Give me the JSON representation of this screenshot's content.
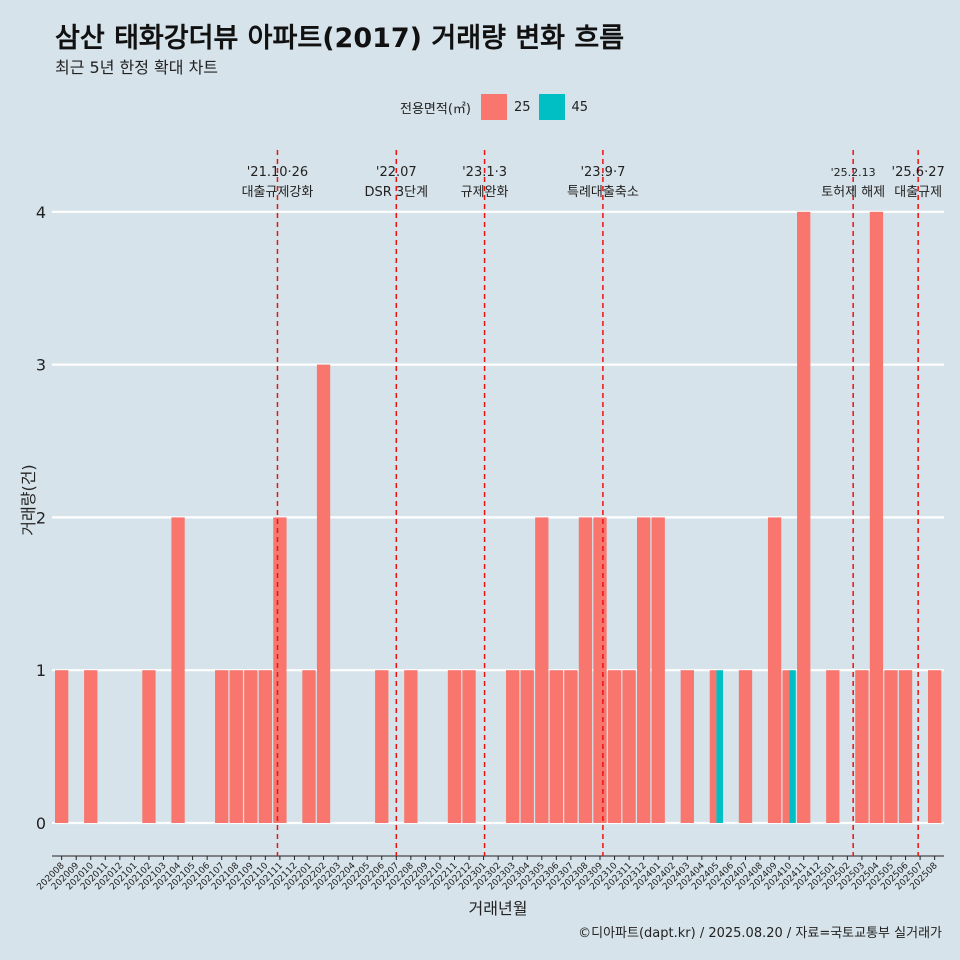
{
  "title": "삼산 태화강더뷰 아파트(2017) 거래량 변화 흐름",
  "subtitle": "최근 5년 한정 확대 차트",
  "caption": "©디아파트(dapt.kr) / 2025.08.20 / 자료=국토교통부 실거래가",
  "legend": {
    "title": "전용면적(㎡)",
    "items": [
      {
        "label": "25",
        "color": "#f8766d"
      },
      {
        "label": "45",
        "color": "#00bfc4"
      }
    ]
  },
  "chart_data": {
    "type": "bar",
    "xlabel": "거래년월",
    "ylabel": "거래량(건)",
    "ylim": [
      0,
      4
    ],
    "yticks": [
      0,
      1,
      2,
      3,
      4
    ],
    "categories": [
      "202008",
      "202009",
      "202010",
      "202011",
      "202012",
      "202101",
      "202102",
      "202103",
      "202104",
      "202105",
      "202106",
      "202107",
      "202108",
      "202109",
      "202110",
      "202111",
      "202112",
      "202201",
      "202202",
      "202203",
      "202204",
      "202205",
      "202206",
      "202207",
      "202208",
      "202209",
      "202210",
      "202211",
      "202212",
      "202301",
      "202302",
      "202303",
      "202304",
      "202305",
      "202306",
      "202307",
      "202308",
      "202309",
      "202310",
      "202311",
      "202312",
      "202401",
      "202402",
      "202403",
      "202404",
      "202405",
      "202406",
      "202407",
      "202408",
      "202409",
      "202410",
      "202411",
      "202412",
      "202501",
      "202502",
      "202503",
      "202504",
      "202505",
      "202506",
      "202507",
      "202508"
    ],
    "series": [
      {
        "name": "25",
        "color": "#f8766d",
        "values": [
          1,
          0,
          1,
          0,
          0,
          0,
          1,
          0,
          2,
          0,
          0,
          1,
          1,
          1,
          1,
          2,
          0,
          1,
          3,
          0,
          0,
          0,
          1,
          0,
          1,
          0,
          0,
          1,
          1,
          0,
          0,
          1,
          1,
          2,
          1,
          1,
          2,
          2,
          1,
          1,
          2,
          2,
          0,
          1,
          0,
          1,
          0,
          1,
          0,
          2,
          1,
          4,
          0,
          1,
          0,
          1,
          4,
          1,
          1,
          0,
          1
        ]
      },
      {
        "name": "45",
        "color": "#00bfc4",
        "values": [
          0,
          0,
          0,
          0,
          0,
          0,
          0,
          0,
          0,
          0,
          0,
          0,
          0,
          0,
          0,
          0,
          0,
          0,
          0,
          0,
          0,
          0,
          0,
          0,
          0,
          0,
          0,
          0,
          0,
          0,
          0,
          0,
          0,
          0,
          0,
          0,
          0,
          0,
          0,
          0,
          0,
          0,
          0,
          0,
          0,
          1,
          0,
          0,
          0,
          0,
          1,
          0,
          0,
          0,
          0,
          0,
          0,
          0,
          0,
          0,
          0
        ]
      }
    ],
    "annotations": [
      {
        "date": "2021-10-26",
        "line1": "'21.10·26",
        "line2": "대출규제강화"
      },
      {
        "date": "2022-07-01",
        "line1": "'22.07",
        "line2": "DSR 3단계"
      },
      {
        "date": "2023-01-03",
        "line1": "'23.1·3",
        "line2": "규제완화"
      },
      {
        "date": "2023-09-07",
        "line1": "'23.9·7",
        "line2": "특례대출축소"
      },
      {
        "date": "2025-02-13",
        "line1": "'25.2.13",
        "line2": "토허제 해제"
      },
      {
        "date": "2025-06-27",
        "line1": "'25.6·27",
        "line2": "대출규제"
      }
    ],
    "grid": "horizontal",
    "legend_position": "top"
  }
}
